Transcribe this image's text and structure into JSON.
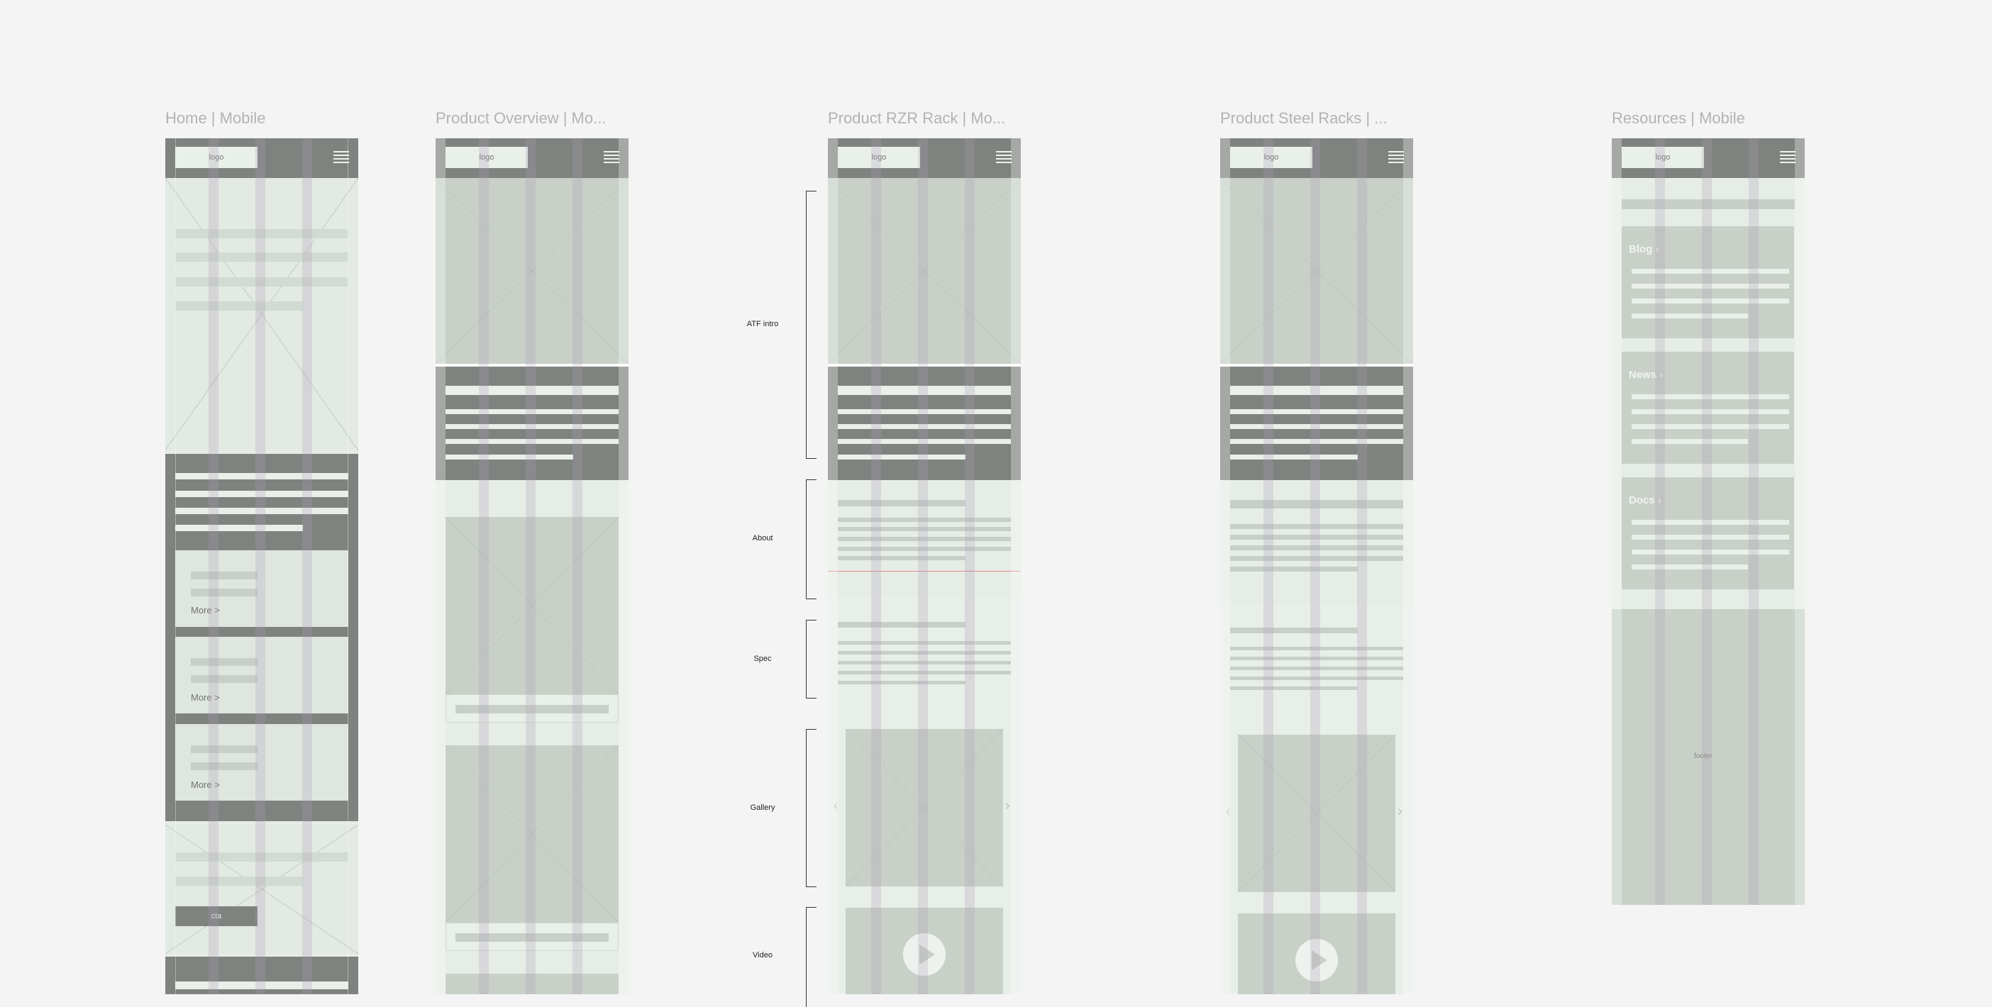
{
  "frames": {
    "home": {
      "title": "Home | Mobile",
      "logo": "logo",
      "more": [
        "More >",
        "More >",
        "More >"
      ],
      "cta": "cta"
    },
    "overview": {
      "title": "Product Overview | Mo...",
      "logo": "logo"
    },
    "rzr": {
      "title": "Product RZR Rack | Mo...",
      "logo": "logo"
    },
    "steel": {
      "title": "Product Steel Racks | ...",
      "logo": "logo"
    },
    "resources": {
      "title": "Resources | Mobile",
      "logo": "logo",
      "cards": [
        "Blog",
        "News",
        "Docs"
      ],
      "footer": "footer"
    }
  },
  "annotations": [
    "ATF intro",
    "About",
    "Spec",
    "Gallery",
    "Video"
  ],
  "icons": {
    "menu": "hamburger-icon",
    "play": "play-icon",
    "chevron": "chevron-right-icon"
  },
  "colors": {
    "background": "#f4f4f4",
    "dark_block": "#7f837f",
    "placeholder": "#c8d0c8",
    "light_sage": "#e6ede6"
  }
}
